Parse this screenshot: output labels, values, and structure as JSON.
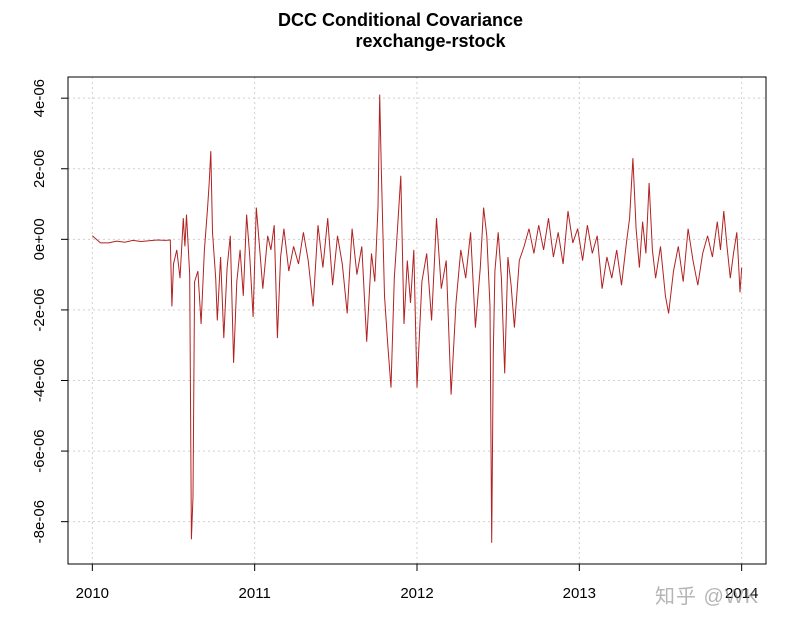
{
  "chart_data": {
    "type": "line",
    "title_line1": "DCC Conditional Covariance",
    "title_line2": "rexchange-rstock",
    "xlabel": "",
    "ylabel": "",
    "x_ticks": [
      "2010",
      "2011",
      "2012",
      "2013",
      "2014"
    ],
    "y_ticks": [
      "-8e-06",
      "-6e-06",
      "-4e-06",
      "-2e-06",
      "0e+00",
      "2e-06",
      "4e-06"
    ],
    "ylim": [
      -9.2e-06,
      4.6e-06
    ],
    "xlim": [
      2009.85,
      2014.15
    ],
    "grid": true,
    "line_color": "#B22222",
    "series": [
      {
        "values": [
          [
            2010.0,
            1e-07
          ],
          [
            2010.05,
            -1e-07
          ],
          [
            2010.1,
            -1e-07
          ],
          [
            2010.15,
            -5e-08
          ],
          [
            2010.2,
            -8e-08
          ],
          [
            2010.25,
            -3e-08
          ],
          [
            2010.3,
            -6e-08
          ],
          [
            2010.35,
            -4e-08
          ],
          [
            2010.4,
            -2e-08
          ],
          [
            2010.45,
            -3e-08
          ],
          [
            2010.48,
            -2e-08
          ],
          [
            2010.49,
            -1.9e-06
          ],
          [
            2010.5,
            -7e-07
          ],
          [
            2010.52,
            -3e-07
          ],
          [
            2010.54,
            -1.1e-06
          ],
          [
            2010.56,
            6e-07
          ],
          [
            2010.57,
            -2e-07
          ],
          [
            2010.58,
            7e-07
          ],
          [
            2010.6,
            -1e-06
          ],
          [
            2010.61,
            -8.5e-06
          ],
          [
            2010.62,
            -7.3e-06
          ],
          [
            2010.63,
            -1.2e-06
          ],
          [
            2010.65,
            -9e-07
          ],
          [
            2010.67,
            -2.4e-06
          ],
          [
            2010.69,
            -3e-07
          ],
          [
            2010.71,
            9e-07
          ],
          [
            2010.72,
            1.6e-06
          ],
          [
            2010.73,
            2.5e-06
          ],
          [
            2010.74,
            2e-07
          ],
          [
            2010.76,
            -1.1e-06
          ],
          [
            2010.77,
            -2.3e-06
          ],
          [
            2010.79,
            -5e-07
          ],
          [
            2010.81,
            -2.8e-06
          ],
          [
            2010.83,
            -8e-07
          ],
          [
            2010.85,
            1e-07
          ],
          [
            2010.87,
            -3.5e-06
          ],
          [
            2010.89,
            -1.2e-06
          ],
          [
            2010.91,
            -3e-07
          ],
          [
            2010.93,
            -1.6e-06
          ],
          [
            2010.95,
            7e-07
          ],
          [
            2010.97,
            -5e-07
          ],
          [
            2010.99,
            -2.2e-06
          ],
          [
            2011.01,
            9e-07
          ],
          [
            2011.03,
            -2e-07
          ],
          [
            2011.05,
            -1.4e-06
          ],
          [
            2011.08,
            1e-07
          ],
          [
            2011.1,
            -3e-07
          ],
          [
            2011.12,
            4e-07
          ],
          [
            2011.14,
            -2.8e-06
          ],
          [
            2011.16,
            -5e-07
          ],
          [
            2011.18,
            3e-07
          ],
          [
            2011.21,
            -9e-07
          ],
          [
            2011.24,
            -2e-07
          ],
          [
            2011.27,
            -7e-07
          ],
          [
            2011.3,
            2e-07
          ],
          [
            2011.33,
            -6e-07
          ],
          [
            2011.36,
            -1.9e-06
          ],
          [
            2011.39,
            4e-07
          ],
          [
            2011.42,
            -8e-07
          ],
          [
            2011.45,
            6e-07
          ],
          [
            2011.48,
            -1.3e-06
          ],
          [
            2011.51,
            1e-07
          ],
          [
            2011.54,
            -7e-07
          ],
          [
            2011.57,
            -2.1e-06
          ],
          [
            2011.6,
            3e-07
          ],
          [
            2011.63,
            -1e-06
          ],
          [
            2011.66,
            -2e-07
          ],
          [
            2011.69,
            -2.9e-06
          ],
          [
            2011.72,
            -4e-07
          ],
          [
            2011.74,
            -1.2e-06
          ],
          [
            2011.76,
            9e-07
          ],
          [
            2011.77,
            4.1e-06
          ],
          [
            2011.78,
            2e-06
          ],
          [
            2011.8,
            -1.6e-06
          ],
          [
            2011.82,
            -3e-06
          ],
          [
            2011.84,
            -4.2e-06
          ],
          [
            2011.86,
            -1.1e-06
          ],
          [
            2011.88,
            3e-07
          ],
          [
            2011.9,
            1.8e-06
          ],
          [
            2011.92,
            -2.4e-06
          ],
          [
            2011.94,
            -6e-07
          ],
          [
            2011.96,
            -1.8e-06
          ],
          [
            2011.98,
            -3e-07
          ],
          [
            2012.0,
            -4.2e-06
          ],
          [
            2012.03,
            -1.2e-06
          ],
          [
            2012.06,
            -4e-07
          ],
          [
            2012.09,
            -2.3e-06
          ],
          [
            2012.12,
            6e-07
          ],
          [
            2012.15,
            -1.4e-06
          ],
          [
            2012.18,
            -6e-07
          ],
          [
            2012.21,
            -4.4e-06
          ],
          [
            2012.24,
            -1.8e-06
          ],
          [
            2012.27,
            -3e-07
          ],
          [
            2012.3,
            -1.1e-06
          ],
          [
            2012.33,
            2e-07
          ],
          [
            2012.36,
            -2.5e-06
          ],
          [
            2012.39,
            -8e-07
          ],
          [
            2012.41,
            9e-07
          ],
          [
            2012.43,
            1e-07
          ],
          [
            2012.45,
            -1.9e-06
          ],
          [
            2012.46,
            -8.6e-06
          ],
          [
            2012.47,
            -3.2e-06
          ],
          [
            2012.48,
            -9e-07
          ],
          [
            2012.5,
            2e-07
          ],
          [
            2012.52,
            -1.1e-06
          ],
          [
            2012.54,
            -3.8e-06
          ],
          [
            2012.56,
            -5e-07
          ],
          [
            2012.58,
            -1.3e-06
          ],
          [
            2012.6,
            -2.5e-06
          ],
          [
            2012.63,
            -6e-07
          ],
          [
            2012.66,
            -2e-07
          ],
          [
            2012.69,
            3e-07
          ],
          [
            2012.72,
            -4e-07
          ],
          [
            2012.75,
            4e-07
          ],
          [
            2012.78,
            -3e-07
          ],
          [
            2012.81,
            6e-07
          ],
          [
            2012.84,
            -5e-07
          ],
          [
            2012.87,
            2e-07
          ],
          [
            2012.9,
            -7e-07
          ],
          [
            2012.93,
            8e-07
          ],
          [
            2012.96,
            -1e-07
          ],
          [
            2012.99,
            3e-07
          ],
          [
            2013.02,
            -6e-07
          ],
          [
            2013.05,
            4e-07
          ],
          [
            2013.08,
            -4e-07
          ],
          [
            2013.11,
            1e-07
          ],
          [
            2013.14,
            -1.4e-06
          ],
          [
            2013.17,
            -5e-07
          ],
          [
            2013.2,
            -1.1e-06
          ],
          [
            2013.23,
            -3e-07
          ],
          [
            2013.26,
            -1.3e-06
          ],
          [
            2013.29,
            -1e-07
          ],
          [
            2013.31,
            6e-07
          ],
          [
            2013.33,
            2.3e-06
          ],
          [
            2013.35,
            3e-07
          ],
          [
            2013.37,
            -8e-07
          ],
          [
            2013.39,
            5e-07
          ],
          [
            2013.41,
            -4e-07
          ],
          [
            2013.43,
            1.6e-06
          ],
          [
            2013.45,
            -3e-07
          ],
          [
            2013.47,
            -1.1e-06
          ],
          [
            2013.5,
            -2e-07
          ],
          [
            2013.53,
            -1.6e-06
          ],
          [
            2013.55,
            -2.1e-06
          ],
          [
            2013.58,
            -9e-07
          ],
          [
            2013.61,
            -2e-07
          ],
          [
            2013.64,
            -1.2e-06
          ],
          [
            2013.67,
            3e-07
          ],
          [
            2013.7,
            -6e-07
          ],
          [
            2013.73,
            -1.3e-06
          ],
          [
            2013.76,
            -4e-07
          ],
          [
            2013.79,
            1e-07
          ],
          [
            2013.82,
            -5e-07
          ],
          [
            2013.85,
            5e-07
          ],
          [
            2013.87,
            -3e-07
          ],
          [
            2013.89,
            8e-07
          ],
          [
            2013.91,
            -2e-07
          ],
          [
            2013.93,
            -1.1e-06
          ],
          [
            2013.95,
            -4e-07
          ],
          [
            2013.97,
            2e-07
          ],
          [
            2013.98,
            -6e-07
          ],
          [
            2013.99,
            -1.5e-06
          ],
          [
            2014.0,
            -8e-07
          ]
        ]
      }
    ]
  },
  "watermark_text": "知乎 @WK"
}
